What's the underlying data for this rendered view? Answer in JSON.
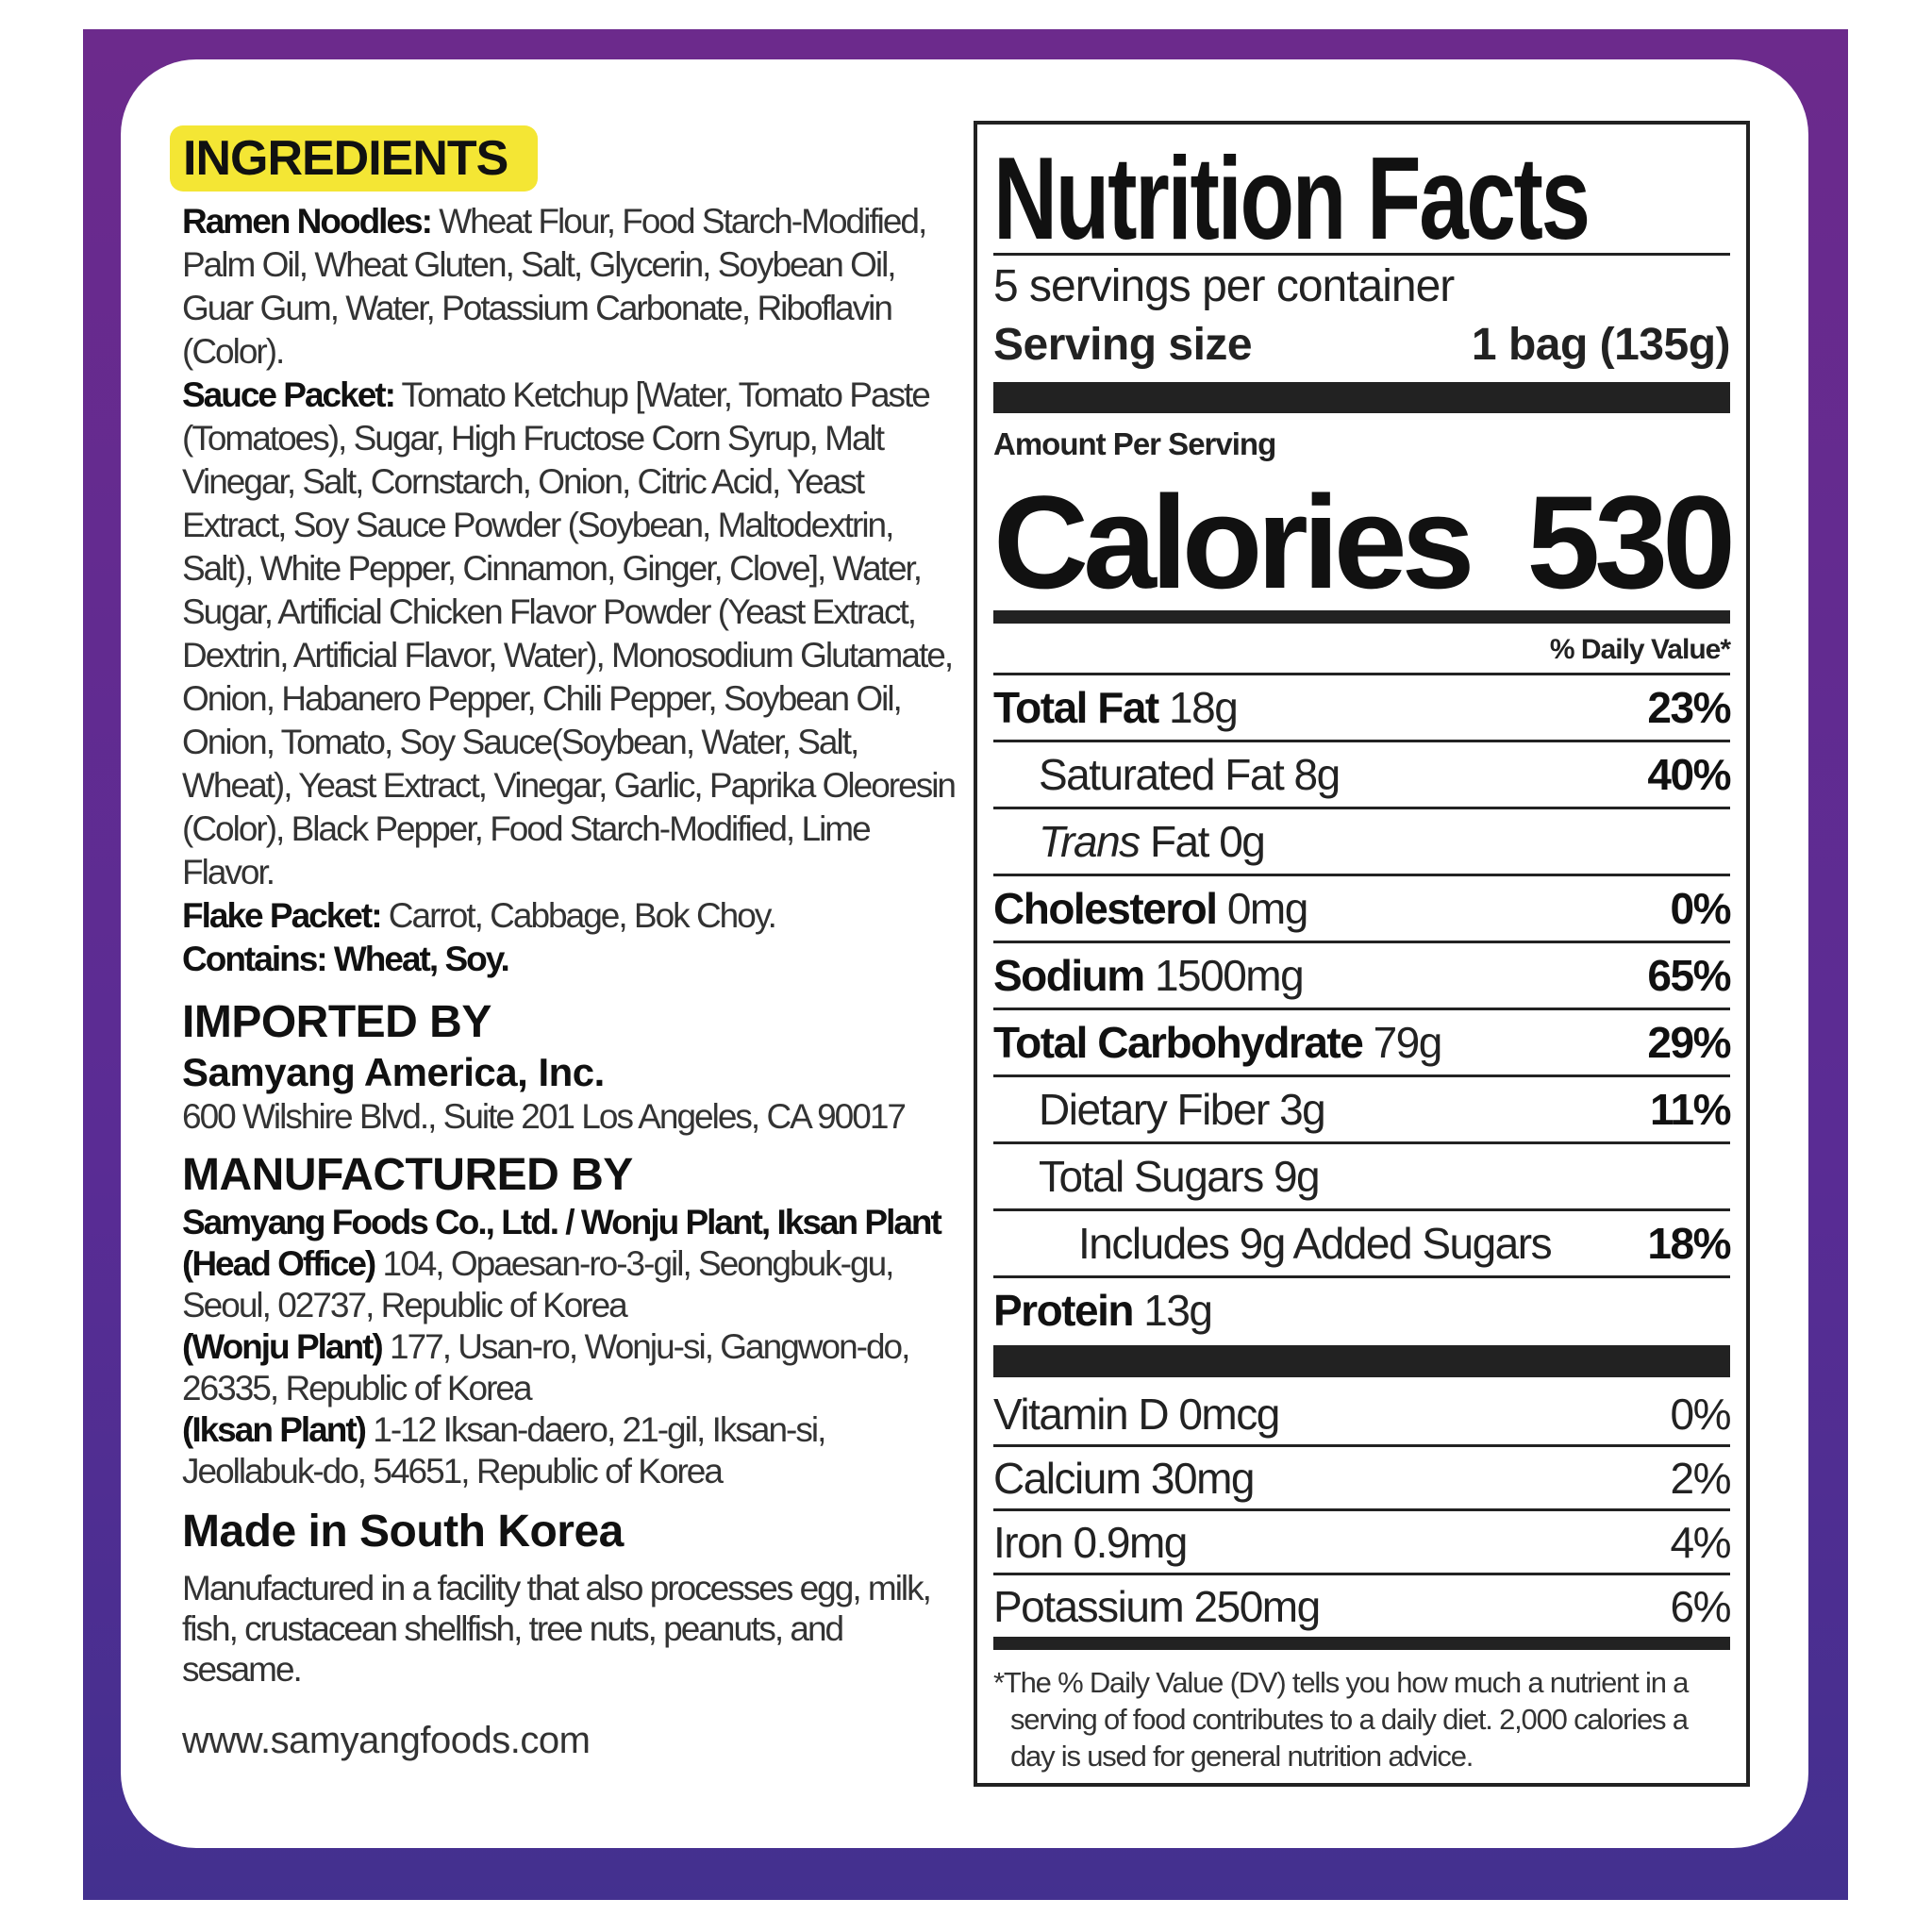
{
  "colors": {
    "background": "#5a2c94",
    "badge": "#f4e634"
  },
  "ingredients": {
    "heading": "INGREDIENTS",
    "sections": [
      {
        "label": "Ramen Noodles:",
        "text": " Wheat Flour, Food Starch-Modified, Palm Oil, Wheat Gluten, Salt, Glycerin, Soybean Oil, Guar Gum, Water, Potassium Carbonate, Riboflavin (Color)."
      },
      {
        "label": "Sauce Packet:",
        "text": " Tomato Ketchup [Water, Tomato Paste (Tomatoes), Sugar, High Fructose Corn Syrup, Malt Vinegar, Salt, Cornstarch, Onion, Citric Acid, Yeast Extract, Soy Sauce Powder (Soybean, Maltodextrin, Salt), White Pepper, Cinnamon, Ginger, Clove], Water, Sugar, Artificial Chicken Flavor Powder (Yeast Extract, Dextrin, Artificial Flavor, Water), Monosodium Glutamate, Onion, Habanero Pepper, Chili Pepper, Soybean Oil, Onion, Tomato, Soy Sauce(Soybean, Water, Salt, Wheat), Yeast Extract, Vinegar, Garlic, Paprika Oleoresin (Color), Black Pepper, Food Starch-Modified, Lime Flavor."
      },
      {
        "label": "Flake Packet:",
        "text": " Carrot, Cabbage, Bok Choy."
      }
    ],
    "contains": "Contains: Wheat, Soy."
  },
  "importer": {
    "heading": "IMPORTED BY",
    "name": "Samyang America, Inc.",
    "address": "600 Wilshire Blvd., Suite 201 Los Angeles, CA 90017"
  },
  "manufacturer": {
    "heading": "MANUFACTURED BY",
    "name": "Samyang Foods Co., Ltd. / Wonju Plant, Iksan Plant",
    "sites": [
      {
        "label": "(Head Office)",
        "address": " 104, Opaesan-ro-3-gil, Seongbuk-gu, Seoul, 02737, Republic of Korea"
      },
      {
        "label": "(Wonju Plant)",
        "address": " 177, Usan-ro, Wonju-si, Gangwon-do, 26335, Republic of Korea"
      },
      {
        "label": "(Iksan Plant)",
        "address": " 1-12 Iksan-daero, 21-gil, Iksan-si, Jeollabuk-do, 54651, Republic of Korea"
      }
    ]
  },
  "origin": "Made in South Korea",
  "allergen_note": "Manufactured in a facility that also processes egg, milk, fish, crustacean shellfish, tree nuts, peanuts, and sesame.",
  "website": "www.samyangfoods.com",
  "nutrition": {
    "title": "Nutrition Facts",
    "servings": "5 servings per container",
    "serving_size_label": "Serving size",
    "serving_size_value": "1 bag (135g)",
    "amount_per_serving": "Amount Per Serving",
    "calories_label": "Calories",
    "calories_value": "530",
    "dv_header": "% Daily Value*",
    "rows": [
      {
        "label": "Total Fat",
        "amount": " 18g",
        "dv": "23%"
      },
      {
        "label": "Saturated Fat 8g",
        "amount": "",
        "dv": "40%"
      },
      {
        "label": "Trans",
        "amount": " Fat 0g",
        "dv": ""
      },
      {
        "label": "Cholesterol",
        "amount": " 0mg",
        "dv": "0%"
      },
      {
        "label": "Sodium",
        "amount": " 1500mg",
        "dv": "65%"
      },
      {
        "label": "Total Carbohydrate",
        "amount": " 79g",
        "dv": "29%"
      },
      {
        "label": "Dietary Fiber 3g",
        "amount": "",
        "dv": "11%"
      },
      {
        "label": "Total Sugars 9g",
        "amount": "",
        "dv": ""
      },
      {
        "label": "Includes 9g Added Sugars",
        "amount": "",
        "dv": "18%"
      },
      {
        "label": "Protein",
        "amount": " 13g",
        "dv": ""
      }
    ],
    "micros": [
      {
        "label": "Vitamin D 0mcg",
        "dv": "0%"
      },
      {
        "label": "Calcium 30mg",
        "dv": "2%"
      },
      {
        "label": "Iron 0.9mg",
        "dv": "4%"
      },
      {
        "label": "Potassium 250mg",
        "dv": "6%"
      }
    ],
    "footnote": "*The % Daily Value (DV) tells you how much a nutrient in a serving of food contributes to a daily diet. 2,000 calories a day is used for general nutrition advice."
  }
}
